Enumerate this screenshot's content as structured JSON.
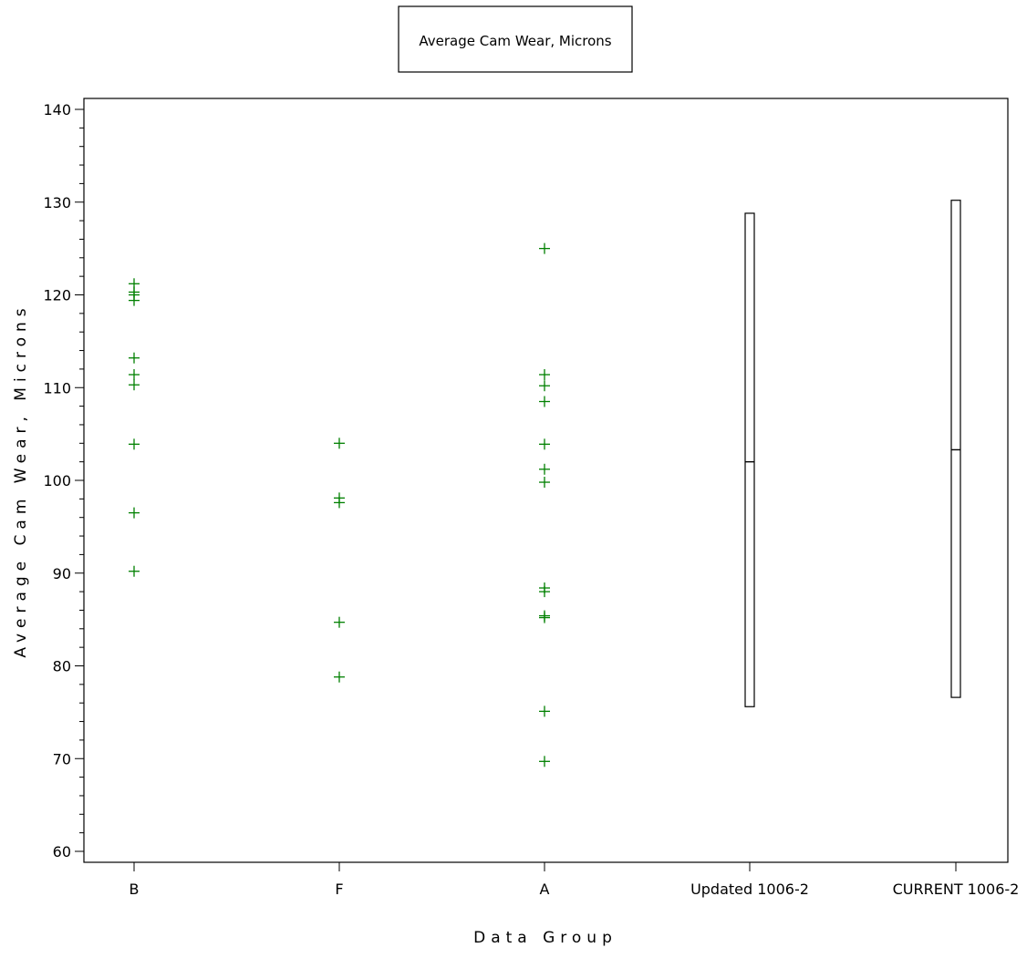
{
  "chart_data": {
    "type": "scatter",
    "legend": {
      "label": "Average Cam Wear, Microns",
      "placement": "top-center"
    },
    "xlabel": "Data Group",
    "ylabel": "Average Cam Wear, Microns",
    "ylim": [
      60,
      140
    ],
    "yticks": [
      60,
      70,
      80,
      90,
      100,
      110,
      120,
      130,
      140
    ],
    "y_minor_step": 2,
    "categories": [
      "B",
      "F",
      "A",
      "Updated 1006-2",
      "CURRENT 1006-2"
    ],
    "marker_color": "#008000",
    "series": [
      {
        "category": "B",
        "values": [
          121.2,
          120.3,
          120.0,
          119.4,
          113.2,
          111.4,
          110.3,
          103.9,
          96.5,
          90.2
        ]
      },
      {
        "category": "F",
        "values": [
          104.0,
          98.1,
          97.6,
          84.7,
          78.8
        ]
      },
      {
        "category": "A",
        "values": [
          125.0,
          111.4,
          110.2,
          108.5,
          103.9,
          101.2,
          99.8,
          88.4,
          88.0,
          85.4,
          85.2,
          75.1,
          69.7
        ]
      }
    ],
    "boxes": [
      {
        "category": "Updated 1006-2",
        "min": 75.6,
        "median": 102.0,
        "max": 128.8
      },
      {
        "category": "CURRENT 1006-2",
        "min": 76.6,
        "median": 103.3,
        "max": 130.2
      }
    ]
  }
}
